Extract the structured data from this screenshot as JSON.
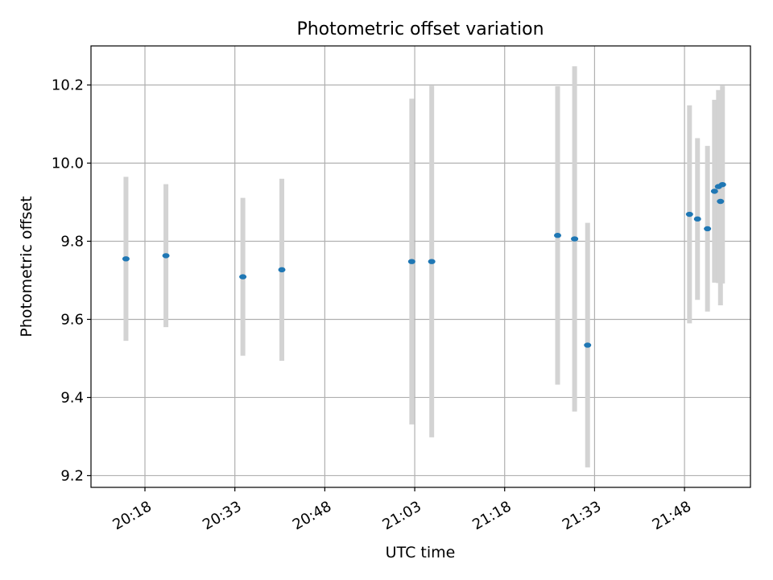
{
  "chart_data": {
    "type": "scatter",
    "title": "Photometric offset variation",
    "xlabel": "UTC time",
    "ylabel": "Photometric offset",
    "x_tick_labels": [
      "20:18",
      "20:33",
      "20:48",
      "21:03",
      "21:18",
      "21:33",
      "21:48"
    ],
    "x_ticks": [
      "20:18",
      "20:33",
      "20:48",
      "21:03",
      "21:18",
      "21:33",
      "21:48"
    ],
    "xlim": [
      "20:09",
      "21:59"
    ],
    "y_ticks": [
      9.2,
      9.4,
      9.6,
      9.8,
      10.0,
      10.2
    ],
    "y_tick_labels": [
      "9.2",
      "9.4",
      "9.6",
      "9.8",
      "10.0",
      "10.2"
    ],
    "ylim": [
      9.17,
      10.3
    ],
    "grid": true,
    "series": [
      {
        "points": [
          {
            "t": "20:14:50",
            "y": 9.755,
            "err": 0.21
          },
          {
            "t": "20:21:30",
            "y": 9.763,
            "err": 0.183
          },
          {
            "t": "20:34:20",
            "y": 9.709,
            "err": 0.202
          },
          {
            "t": "20:40:50",
            "y": 9.727,
            "err": 0.233
          },
          {
            "t": "21:02:30",
            "y": 9.748,
            "err": 0.417
          },
          {
            "t": "21:05:50",
            "y": 9.748,
            "err": 0.45
          },
          {
            "t": "21:26:50",
            "y": 9.815,
            "err": 0.382
          },
          {
            "t": "21:29:40",
            "y": 9.806,
            "err": 0.442
          },
          {
            "t": "21:31:50",
            "y": 9.534,
            "err": 0.313
          },
          {
            "t": "21:48:50",
            "y": 9.869,
            "err": 0.279
          },
          {
            "t": "21:50:10",
            "y": 9.857,
            "err": 0.207
          },
          {
            "t": "21:51:50",
            "y": 9.832,
            "err": 0.212
          },
          {
            "t": "21:53:00",
            "y": 9.928,
            "err": 0.234
          },
          {
            "t": "21:53:40",
            "y": 9.94,
            "err": 0.247
          },
          {
            "t": "21:54:00",
            "y": 9.902,
            "err": 0.266
          },
          {
            "t": "21:54:20",
            "y": 9.945,
            "err": 0.253
          }
        ]
      }
    ],
    "colors": {
      "marker": "#1f77b4",
      "errorbar": "#d3d3d3",
      "grid": "#b0b0b0"
    }
  }
}
